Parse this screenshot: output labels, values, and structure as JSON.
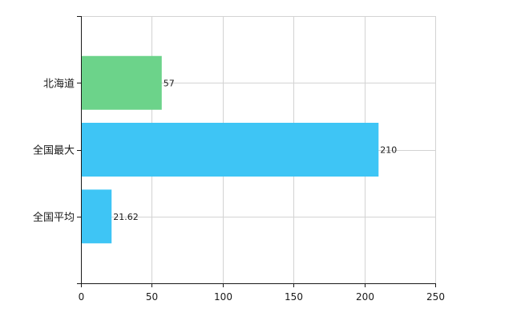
{
  "chart_data": {
    "type": "bar",
    "orientation": "horizontal",
    "categories": [
      "北海道",
      "全国最大",
      "全国平均"
    ],
    "values": [
      57,
      210,
      21.62
    ],
    "value_labels": [
      "57",
      "210",
      "21.62"
    ],
    "bar_colors": [
      "#6cd38a",
      "#3ec5f5",
      "#3ec5f5"
    ],
    "xlim": [
      0,
      250
    ],
    "x_ticks": [
      0,
      50,
      100,
      150,
      200,
      250
    ],
    "grid": true,
    "legend": "none",
    "title": "",
    "xlabel": "",
    "ylabel": ""
  }
}
